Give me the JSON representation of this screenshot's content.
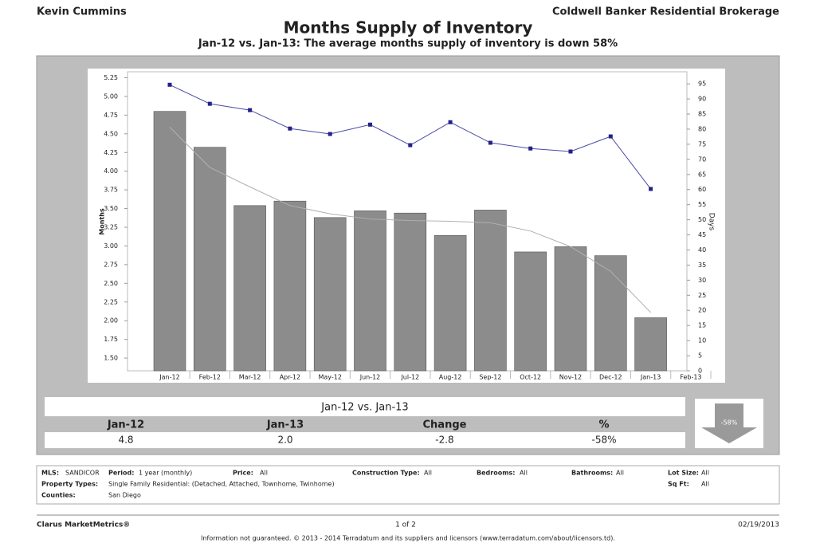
{
  "header": {
    "left": "Kevin Cummins",
    "right": "Coldwell Banker Residential Brokerage"
  },
  "chart_data": {
    "type": "bar",
    "title": "Months Supply of Inventory",
    "subtitle": "Jan-12 vs. Jan-13:  The average months supply of inventory is down 58%",
    "y_label": "Months",
    "y2_label": "Days",
    "categories": [
      "Jan-12",
      "Feb-12",
      "Mar-12",
      "Apr-12",
      "May-12",
      "Jun-12",
      "Jul-12",
      "Aug-12",
      "Sep-12",
      "Oct-12",
      "Nov-12",
      "Dec-12",
      "Jan-13",
      "Feb-13"
    ],
    "series": [
      {
        "type": "bar",
        "color": "#8c8c8c",
        "values": [
          4.8,
          4.32,
          3.54,
          3.6,
          3.38,
          3.47,
          3.44,
          3.14,
          3.48,
          2.92,
          2.99,
          2.87,
          2.04,
          null
        ]
      },
      {
        "type": "line",
        "color": "#4a4aa8",
        "axis": "y2",
        "values": [
          94.7,
          88.4,
          86.3,
          80.2,
          78.4,
          81.5,
          74.7,
          82.3,
          75.5,
          73.6,
          72.6,
          77.6,
          60.2,
          null
        ]
      },
      {
        "type": "line",
        "color": "#b0b0b0",
        "values": [
          4.59,
          4.05,
          3.79,
          3.54,
          3.43,
          3.36,
          3.34,
          3.33,
          3.31,
          3.2,
          2.99,
          2.66,
          2.11,
          null
        ]
      }
    ],
    "ylim": [
      1.33,
      5.33
    ],
    "yticks": [
      {
        "value": 1.5,
        "label": "1.50"
      },
      1.75,
      {
        "value": 2,
        "label": "2.00"
      },
      2.25,
      {
        "value": 2.5,
        "label": "2.50"
      },
      2.75,
      {
        "value": 3,
        "label": "3.00"
      },
      3.25,
      {
        "value": 3.5,
        "label": "3.50"
      },
      3.75,
      {
        "value": 4,
        "label": "4.00"
      },
      4.25,
      {
        "value": 4.5,
        "label": "4.50"
      },
      4.75,
      {
        "value": 5,
        "label": "5.00"
      },
      5.25
    ],
    "y2lim": [
      0,
      99
    ],
    "y2ticks": [
      0,
      5,
      10,
      15,
      20,
      25,
      30,
      35,
      40,
      45,
      50,
      55,
      60,
      65,
      70,
      75,
      80,
      85,
      90,
      95
    ]
  },
  "summary": {
    "title": "Jan-12 vs. Jan-13",
    "headers": [
      "Jan-12",
      "Jan-13",
      "Change",
      "%"
    ],
    "values": [
      "4.8",
      "2.0",
      "-2.8",
      "-58%"
    ],
    "badge": "-58%"
  },
  "details": [
    [
      "MLS:",
      "SANDICOR"
    ],
    [
      "Period:",
      "1 year (monthly)"
    ],
    [
      "Price:",
      "All"
    ],
    [
      "Construction Type:",
      "All"
    ],
    [
      "Bedrooms:",
      "All"
    ],
    [
      "Bathrooms:",
      "All"
    ],
    [
      "Lot Size:",
      "All"
    ],
    [
      "Property Types:",
      "Single Family Residential: (Detached, Attached, Townhome, Twinhome)"
    ],
    [
      "Sq Ft:",
      "All"
    ],
    [
      "Counties:",
      "San Diego"
    ]
  ],
  "footer": {
    "left": "Clarus MarketMetrics®",
    "center": "1 of 2",
    "right": "02/19/2013",
    "notice": "Information not guaranteed.  © 2013 - 2014 Terradatum and its suppliers and licensors (www.terradatum.com/about/licensors.td)."
  }
}
